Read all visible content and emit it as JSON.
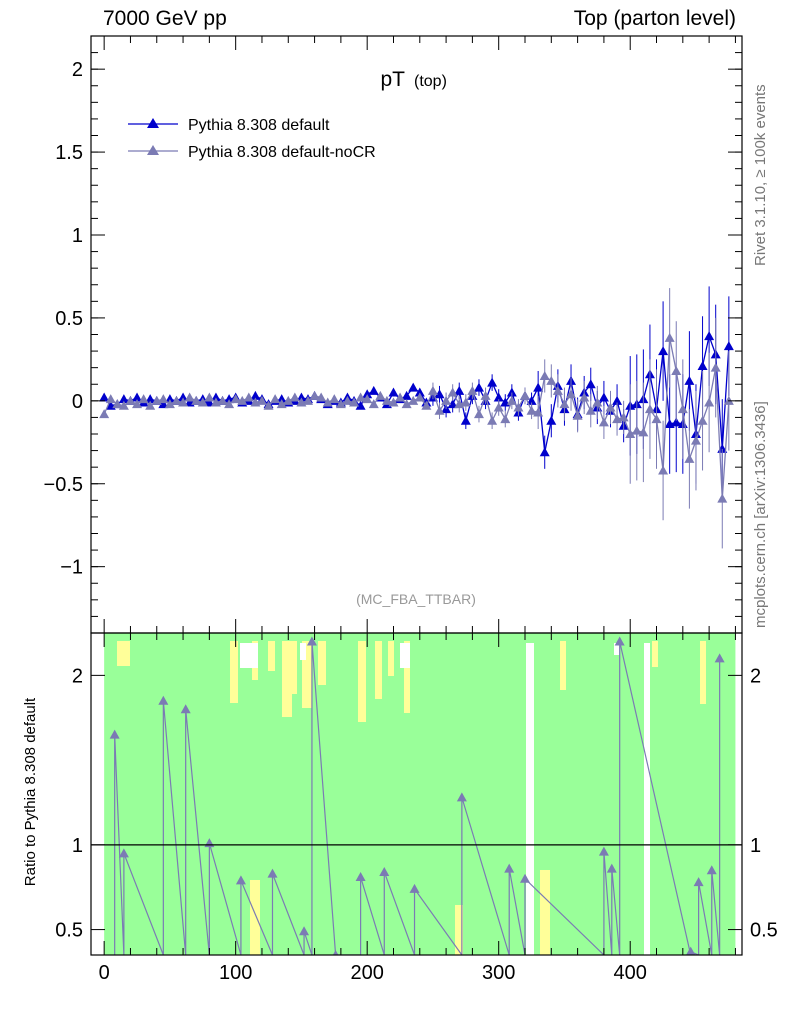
{
  "header": {
    "left": "7000 GeV pp",
    "right": "Top (parton level)"
  },
  "side_labels": {
    "rivet": "Rivet 3.1.10, ≥ 100k events",
    "mcplots": "mcplots.cern.ch [arXiv:1306.3436]"
  },
  "chart_data": [
    {
      "type": "line",
      "title": "pT",
      "title_sub": "(top)",
      "watermark": "(MC_FBA_TTBAR)",
      "xlim": [
        -10,
        485
      ],
      "ylim": [
        -1.4,
        2.2
      ],
      "yticks": [
        -1,
        -0.5,
        0,
        0.5,
        1,
        1.5,
        2
      ],
      "ytick_labels": [
        "−1",
        "−0.5",
        "0",
        "0.5",
        "1",
        "1.5",
        "2"
      ],
      "legend_position": "top-left",
      "x": [
        0,
        5,
        10,
        15,
        20,
        25,
        30,
        35,
        40,
        45,
        50,
        55,
        60,
        65,
        70,
        75,
        80,
        85,
        90,
        95,
        100,
        105,
        110,
        115,
        120,
        125,
        130,
        135,
        140,
        145,
        150,
        155,
        160,
        165,
        170,
        175,
        180,
        185,
        190,
        195,
        200,
        205,
        210,
        215,
        220,
        225,
        230,
        235,
        240,
        245,
        250,
        255,
        260,
        265,
        270,
        275,
        280,
        285,
        290,
        295,
        300,
        305,
        310,
        315,
        320,
        325,
        330,
        335,
        340,
        345,
        350,
        355,
        360,
        365,
        370,
        375,
        380,
        385,
        390,
        395,
        400,
        405,
        410,
        415,
        420,
        425,
        430,
        435,
        440,
        445,
        450,
        455,
        460,
        465,
        470,
        475
      ],
      "series": [
        {
          "name": "Pythia 8.308 default",
          "color": "#0000cc",
          "values": [
            0.02,
            -0.03,
            -0.02,
            0.01,
            0.0,
            0.02,
            -0.01,
            0.01,
            0.0,
            -0.02,
            0.01,
            0.0,
            0.02,
            -0.01,
            0.0,
            0.01,
            -0.01,
            0.02,
            0.0,
            0.01,
            0.02,
            -0.01,
            0.0,
            0.03,
            0.01,
            -0.02,
            0.0,
            0.01,
            -0.01,
            0.0,
            0.02,
            0.01,
            0.03,
            0.01,
            -0.02,
            0.0,
            -0.01,
            0.02,
            0.0,
            -0.03,
            0.04,
            0.06,
            0.02,
            -0.02,
            0.05,
            0.01,
            0.03,
            0.08,
            0.05,
            -0.01,
            0.02,
            0.04,
            -0.05,
            -0.02,
            0.06,
            -0.12,
            0.03,
            0.08,
            0.0,
            0.11,
            0.02,
            -0.01,
            0.05,
            -0.07,
            0.03,
            0.0,
            0.08,
            -0.31,
            -0.12,
            0.09,
            -0.05,
            0.12,
            -0.08,
            0.05,
            0.1,
            -0.04,
            0.02,
            -0.06,
            0.0,
            -0.15,
            -0.03,
            -0.02,
            0.01,
            0.16,
            -0.05,
            0.3,
            -0.14,
            -0.13,
            -0.14,
            0.12,
            -0.2,
            0.21,
            0.39,
            0.28,
            -0.29,
            0.33
          ]
        },
        {
          "name": "Pythia 8.308 default-noCR",
          "color": "#7b7bb4",
          "values": [
            -0.08,
            0.01,
            -0.02,
            -0.03,
            0.0,
            -0.02,
            0.01,
            -0.03,
            0.0,
            0.01,
            -0.02,
            0.0,
            -0.01,
            0.02,
            0.0,
            -0.01,
            0.02,
            -0.01,
            0.0,
            -0.02,
            0.01,
            0.0,
            0.02,
            -0.01,
            0.0,
            -0.03,
            0.01,
            -0.02,
            0.0,
            0.02,
            -0.01,
            0.0,
            0.03,
            0.02,
            -0.01,
            0.01,
            -0.02,
            0.0,
            -0.01,
            0.02,
            0.01,
            -0.02,
            0.03,
            0.0,
            -0.01,
            0.02,
            -0.02,
            0.0,
            0.02,
            -0.03,
            0.06,
            -0.06,
            0.0,
            0.05,
            -0.02,
            -0.01,
            0.06,
            -0.08,
            0.03,
            -0.12,
            -0.04,
            -0.11,
            0.0,
            -0.04,
            0.03,
            -0.06,
            -0.07,
            0.15,
            0.12,
            0.06,
            -0.02,
            0.04,
            -0.09,
            0.02,
            -0.06,
            -0.01,
            -0.13,
            -0.04,
            -0.11,
            -0.1,
            -0.2,
            -0.18,
            -0.19,
            -0.05,
            -0.11,
            -0.42,
            0.38,
            0.18,
            -0.05,
            -0.35,
            -0.24,
            -0.12,
            -0.01,
            0.2,
            -0.59,
            0.0
          ]
        }
      ]
    },
    {
      "type": "line",
      "ylabel": "Ratio to Pythia 8.308 default",
      "xlim": [
        -10,
        485
      ],
      "ylim": [
        0.35,
        2.25
      ],
      "xticks": [
        0,
        100,
        200,
        300,
        400
      ],
      "yticks": [
        0.5,
        1,
        2
      ],
      "reference_line": 1,
      "band_green_color": "#99ff99",
      "band_yellow_color": "#ffff99",
      "series": [
        {
          "name": "Pythia 8.308 default-noCR",
          "color": "#7b7bb4",
          "x": [
            8,
            15,
            45,
            62,
            80,
            104,
            128,
            152,
            158,
            176,
            195,
            213,
            236,
            272,
            308,
            320,
            380,
            386,
            392,
            446,
            452,
            462,
            468
          ],
          "values": [
            1.65,
            0.95,
            1.85,
            1.8,
            1.01,
            0.79,
            0.83,
            0.49,
            2.2,
            0.35,
            0.81,
            0.84,
            0.74,
            1.28,
            0.86,
            0.8,
            0.96,
            0.86,
            2.2,
            0.37,
            0.78,
            0.85,
            2.1
          ]
        }
      ]
    }
  ]
}
